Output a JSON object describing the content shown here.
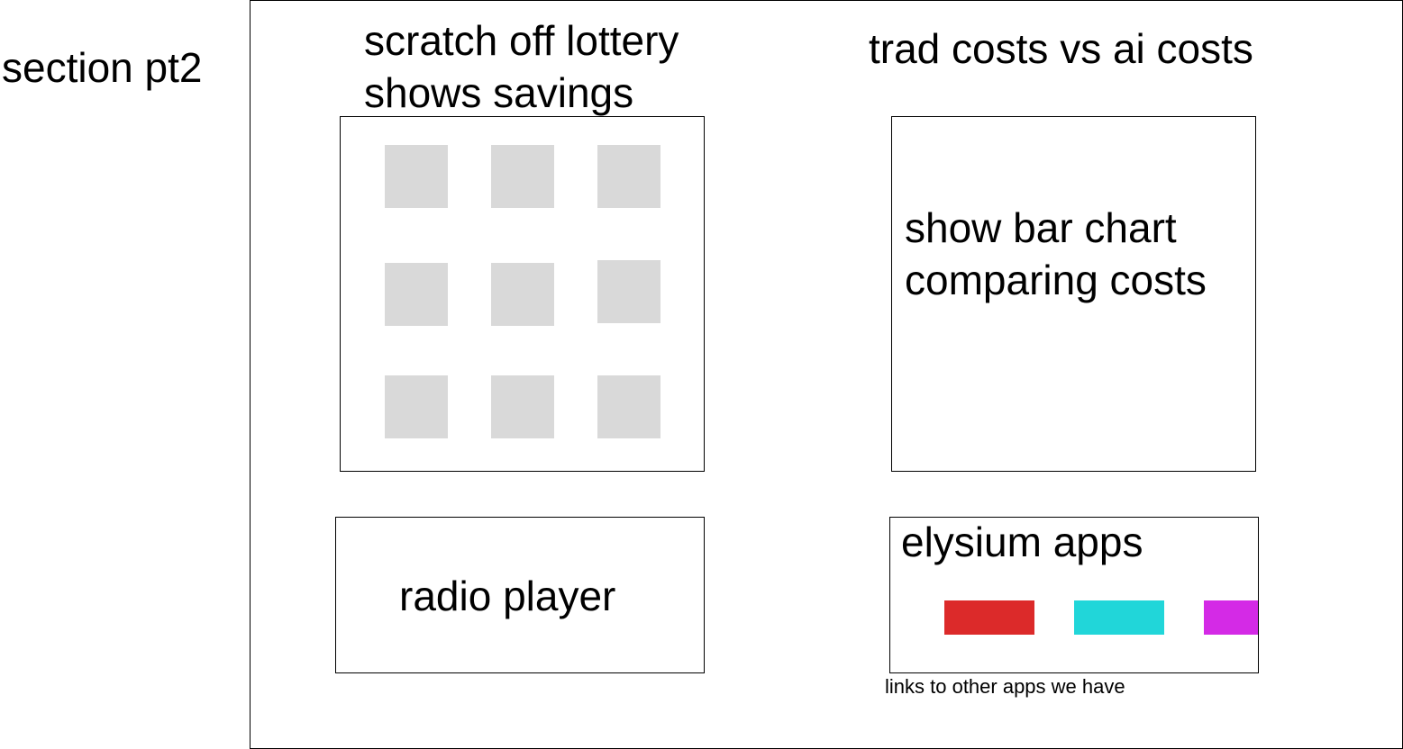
{
  "section_label": "section pt2",
  "lottery": {
    "title_line1": "scratch off lottery",
    "title_line2": "shows savings",
    "tile_count": 9
  },
  "costs": {
    "title": "trad costs vs ai costs",
    "placeholder_line1": "show bar chart",
    "placeholder_line2": "comparing costs"
  },
  "radio": {
    "label": "radio player"
  },
  "apps": {
    "title": "elysium apps",
    "note": "links to other apps we have",
    "links": [
      {
        "color": "#dc2a2a"
      },
      {
        "color": "#21d6d9"
      },
      {
        "color": "#d42ae6"
      }
    ]
  }
}
